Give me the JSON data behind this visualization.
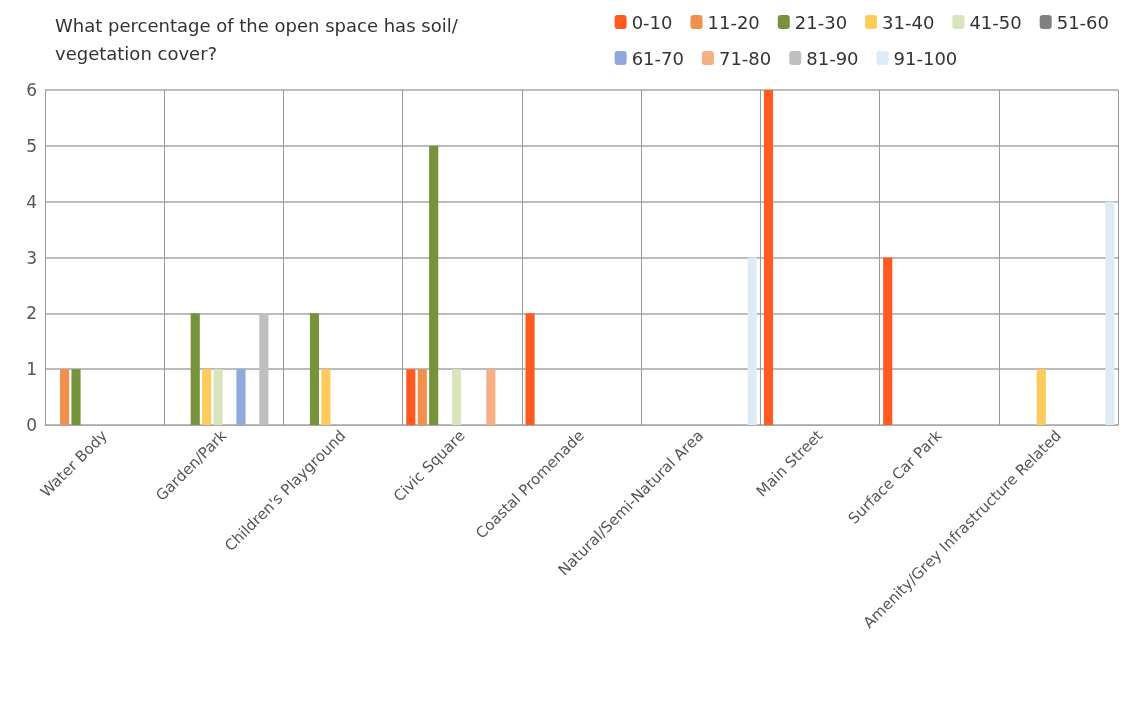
{
  "chart_data": {
    "type": "bar",
    "title": "What percentage of the open space has soil/vegetation cover?",
    "categories": [
      "Water Body",
      "Garden/Park",
      "Children's Playground",
      "Civic Square",
      "Coastal Promenade",
      "Natural/Semi-Natural Area",
      "Main Street",
      "Surface Car Park",
      "Amenity/Grey Infrastructure Related"
    ],
    "series": [
      {
        "name": "0-10",
        "color": "#ff5a1f",
        "values": [
          0,
          0,
          0,
          1,
          2,
          0,
          6,
          3,
          0
        ]
      },
      {
        "name": "11-20",
        "color": "#f0904c",
        "values": [
          1,
          0,
          0,
          1,
          0,
          0,
          0,
          0,
          0
        ]
      },
      {
        "name": "21-30",
        "color": "#76933c",
        "values": [
          1,
          2,
          2,
          5,
          0,
          0,
          0,
          0,
          0
        ]
      },
      {
        "name": "31-40",
        "color": "#ffcc5c",
        "values": [
          0,
          1,
          1,
          0,
          0,
          0,
          0,
          0,
          1
        ]
      },
      {
        "name": "41-50",
        "color": "#d8e4bc",
        "values": [
          0,
          1,
          0,
          1,
          0,
          0,
          0,
          0,
          0
        ]
      },
      {
        "name": "51-60",
        "color": "#808080",
        "values": [
          0,
          0,
          0,
          0,
          0,
          0,
          0,
          0,
          0
        ]
      },
      {
        "name": "61-70",
        "color": "#8ea9db",
        "values": [
          0,
          1,
          0,
          0,
          0,
          0,
          0,
          0,
          0
        ]
      },
      {
        "name": "71-80",
        "color": "#f4b084",
        "values": [
          0,
          0,
          0,
          1,
          0,
          0,
          0,
          0,
          0
        ]
      },
      {
        "name": "81-90",
        "color": "#bfbfbf",
        "values": [
          0,
          2,
          0,
          0,
          0,
          0,
          0,
          0,
          0
        ]
      },
      {
        "name": "91-100",
        "color": "#ddebf7",
        "values": [
          0,
          0,
          0,
          0,
          0,
          3,
          0,
          0,
          4
        ]
      }
    ],
    "ylim": [
      0,
      6
    ],
    "yticks": [
      0,
      1,
      2,
      3,
      4,
      5,
      6
    ],
    "grid": true,
    "legend": "top right"
  }
}
